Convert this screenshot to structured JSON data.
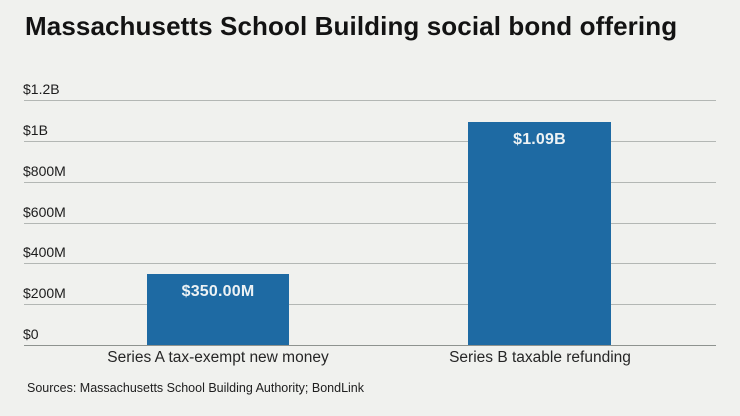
{
  "title": "Massachusetts School Building social bond offering",
  "source_line": "Sources: Massachusetts School Building Authority; BondLink",
  "colors": {
    "background": "#f0f1ee",
    "bar": "#1e6aa3",
    "gridline": "#b3b7b4",
    "baseline": "#8e938f",
    "title_text": "#131313",
    "bar_value_text": "#edf2f4"
  },
  "chart_data": {
    "type": "bar",
    "title": "Massachusetts School Building social bond offering",
    "categories": [
      "Series A tax-exempt new money",
      "Series B taxable refunding"
    ],
    "values": [
      350,
      1090
    ],
    "value_unit": "USD millions",
    "value_labels": [
      "$350.00M",
      "$1.09B"
    ],
    "xlabel": "",
    "ylabel": "",
    "ylim": [
      0,
      1200
    ],
    "yticks": [
      {
        "value": 0,
        "label": "$0"
      },
      {
        "value": 200,
        "label": "$200M"
      },
      {
        "value": 400,
        "label": "$400M"
      },
      {
        "value": 600,
        "label": "$600M"
      },
      {
        "value": 800,
        "label": "$800M"
      },
      {
        "value": 1000,
        "label": "$1B"
      },
      {
        "value": 1200,
        "label": "$1.2B"
      }
    ],
    "grid": "horizontal",
    "legend": "none",
    "bar_color": "#1e6aa3"
  }
}
